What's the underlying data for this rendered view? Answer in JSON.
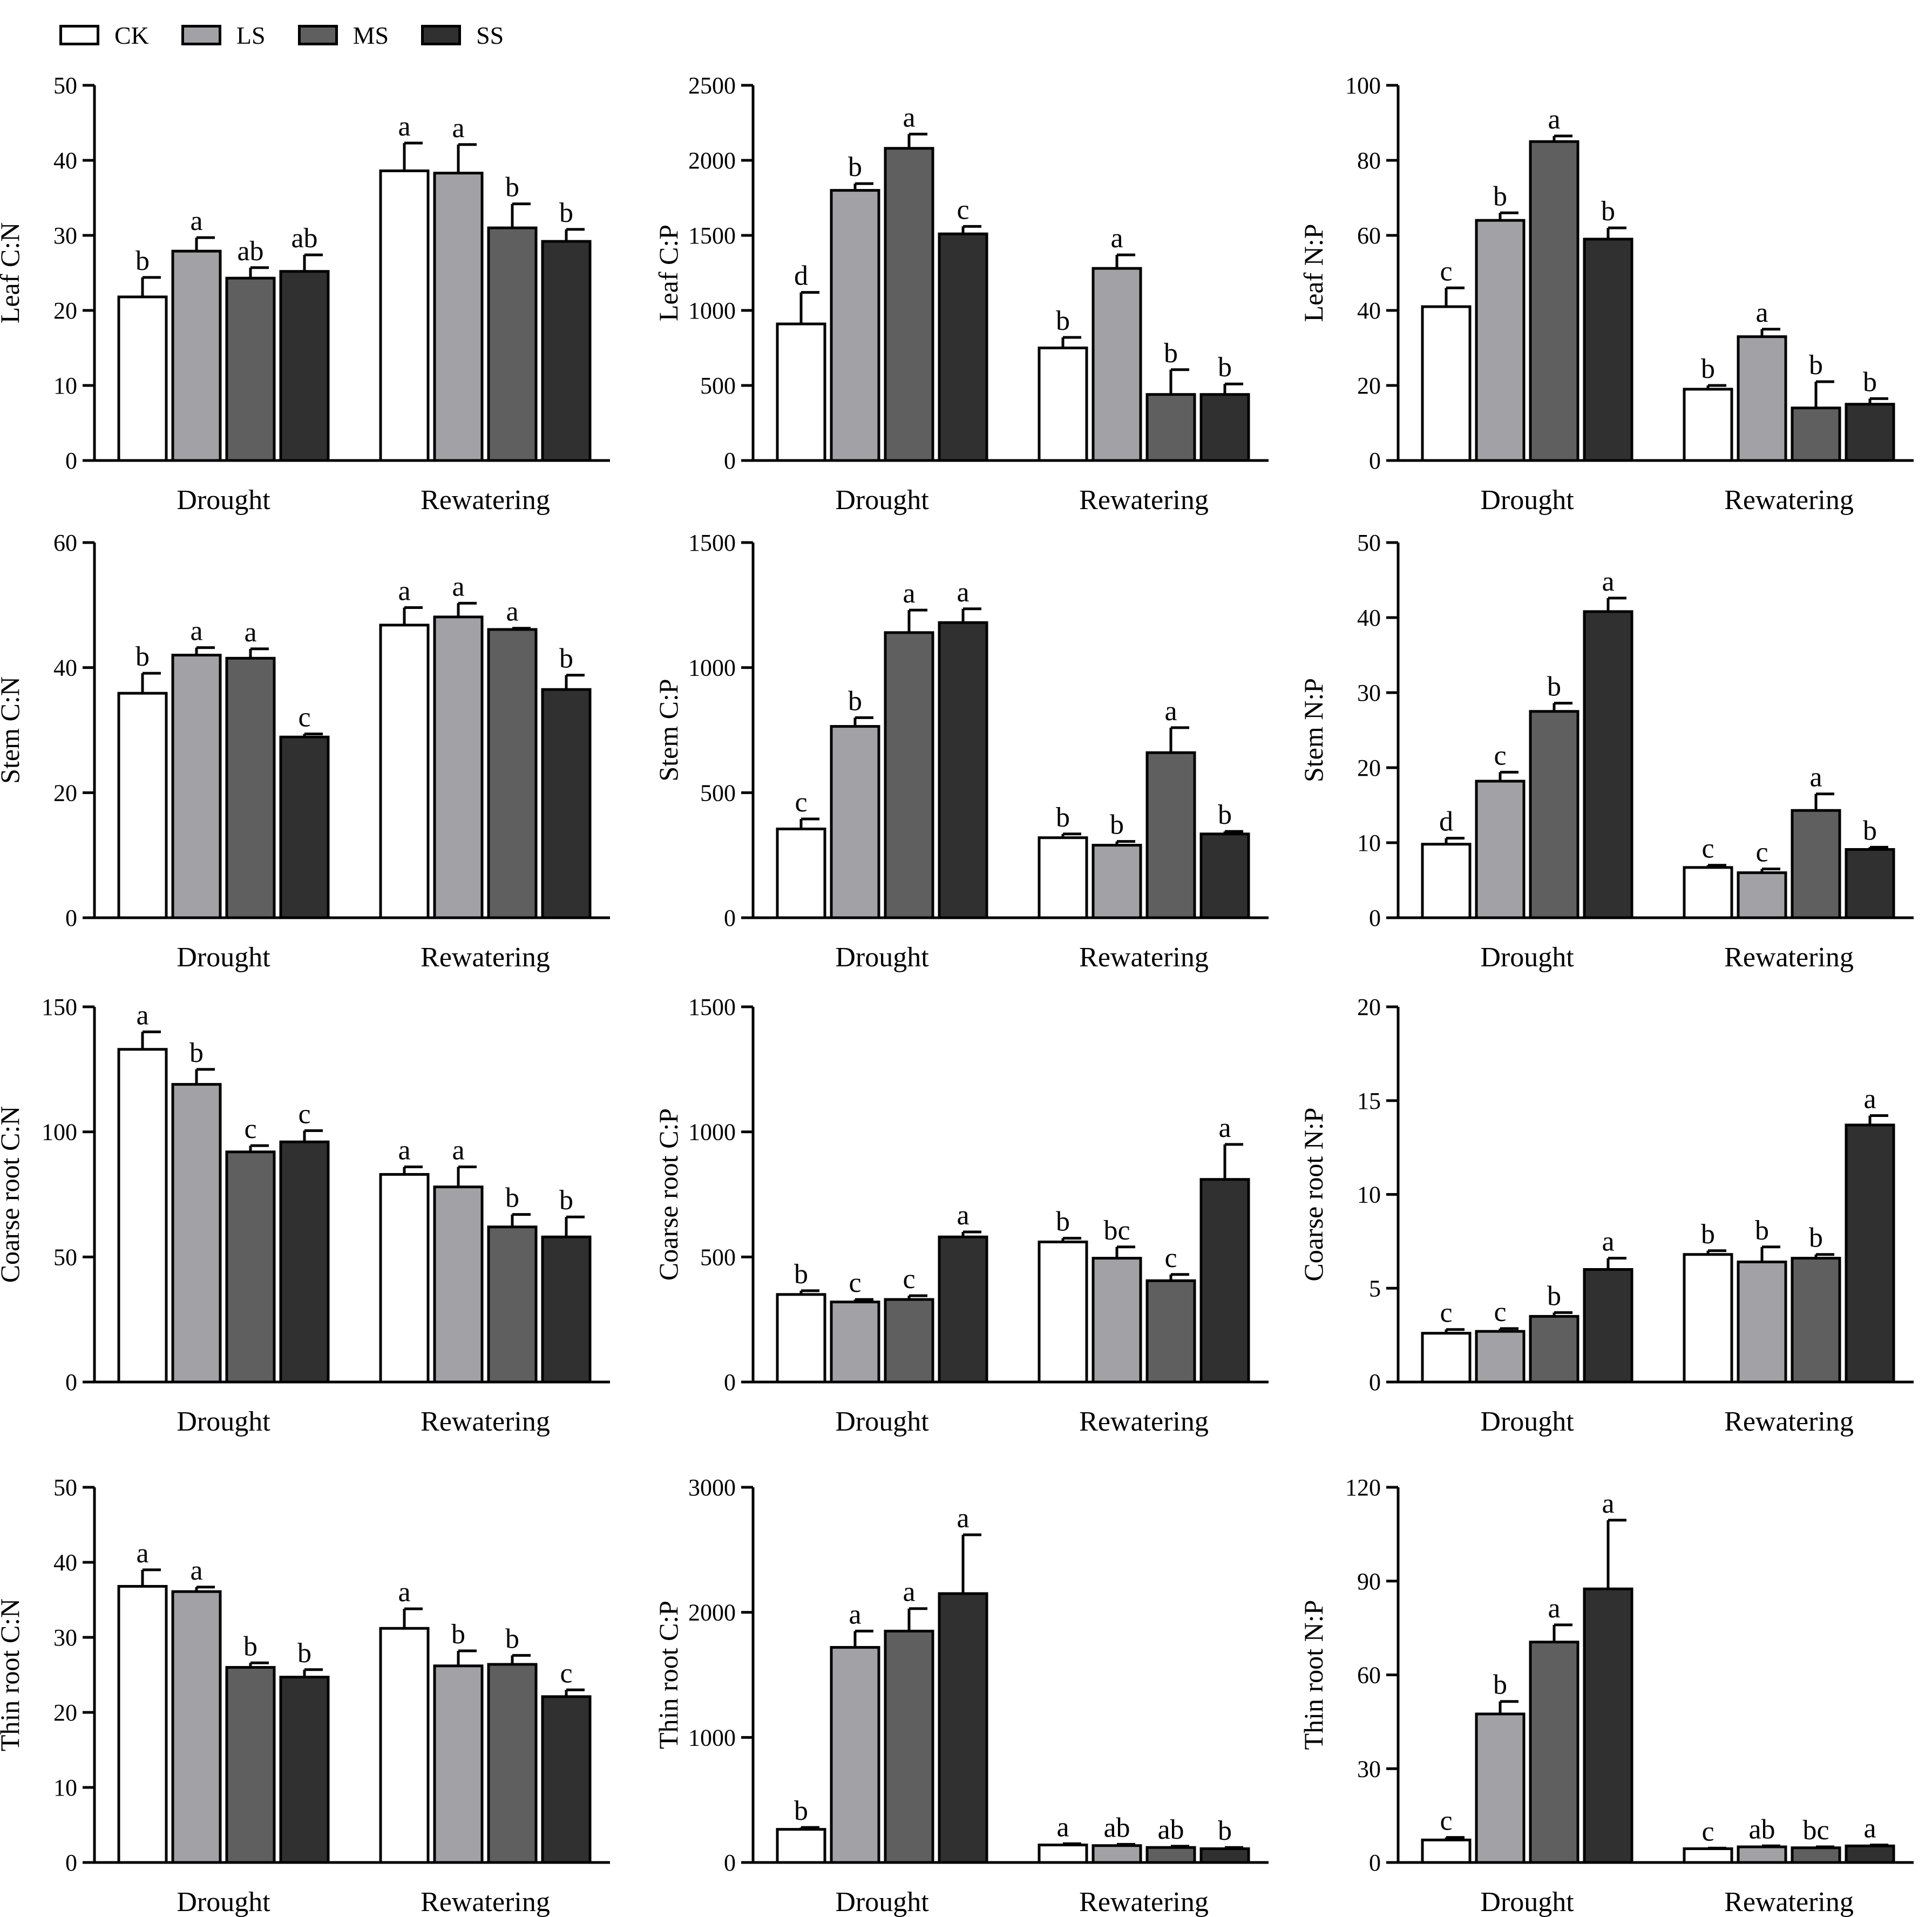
{
  "legend": [
    {
      "code": "CK",
      "color": "#ffffff"
    },
    {
      "code": "LS",
      "color": "#a2a2a6"
    },
    {
      "code": "MS",
      "color": "#5f5f5f"
    },
    {
      "code": "SS",
      "color": "#303030"
    }
  ],
  "chart_data": [
    {
      "type": "bar",
      "ylabel": "Leaf C:N",
      "categories": [
        "Drought",
        "Rewatering"
      ],
      "ylim": [
        0,
        50
      ],
      "yticks": [
        0,
        10,
        20,
        30,
        40,
        50
      ],
      "series": [
        {
          "name": "CK",
          "values": [
            21.8,
            38.6
          ],
          "errors": [
            2.6,
            3.7
          ],
          "letters": [
            "b",
            "a"
          ]
        },
        {
          "name": "LS",
          "values": [
            27.9,
            38.3
          ],
          "errors": [
            1.8,
            3.8
          ],
          "letters": [
            "a",
            "a"
          ]
        },
        {
          "name": "MS",
          "values": [
            24.3,
            31.0
          ],
          "errors": [
            1.4,
            3.2
          ],
          "letters": [
            "ab",
            "b"
          ]
        },
        {
          "name": "SS",
          "values": [
            25.2,
            29.2
          ],
          "errors": [
            2.2,
            1.6
          ],
          "letters": [
            "ab",
            "b"
          ]
        }
      ]
    },
    {
      "type": "bar",
      "ylabel": "Leaf C:P",
      "categories": [
        "Drought",
        "Rewatering"
      ],
      "ylim": [
        0,
        2500
      ],
      "yticks": [
        0,
        500,
        1000,
        1500,
        2000,
        2500
      ],
      "series": [
        {
          "name": "CK",
          "values": [
            910,
            750
          ],
          "errors": [
            210,
            70
          ],
          "letters": [
            "d",
            "b"
          ]
        },
        {
          "name": "LS",
          "values": [
            1800,
            1280
          ],
          "errors": [
            45,
            90
          ],
          "letters": [
            "b",
            "a"
          ]
        },
        {
          "name": "MS",
          "values": [
            2080,
            440
          ],
          "errors": [
            95,
            165
          ],
          "letters": [
            "a",
            "b"
          ]
        },
        {
          "name": "SS",
          "values": [
            1510,
            440
          ],
          "errors": [
            50,
            70
          ],
          "letters": [
            "c",
            "b"
          ]
        }
      ]
    },
    {
      "type": "bar",
      "ylabel": "Leaf N:P",
      "categories": [
        "Drought",
        "Rewatering"
      ],
      "ylim": [
        0,
        100
      ],
      "yticks": [
        0,
        20,
        40,
        60,
        80,
        100
      ],
      "series": [
        {
          "name": "CK",
          "values": [
            41,
            19
          ],
          "errors": [
            5,
            1
          ],
          "letters": [
            "c",
            "b"
          ]
        },
        {
          "name": "LS",
          "values": [
            64,
            33
          ],
          "errors": [
            2,
            2
          ],
          "letters": [
            "b",
            "a"
          ]
        },
        {
          "name": "MS",
          "values": [
            85,
            14
          ],
          "errors": [
            1.5,
            7
          ],
          "letters": [
            "a",
            "b"
          ]
        },
        {
          "name": "SS",
          "values": [
            59,
            15
          ],
          "errors": [
            3,
            1.5
          ],
          "letters": [
            "b",
            "b"
          ]
        }
      ]
    },
    {
      "type": "bar",
      "ylabel": "Stem C:N",
      "categories": [
        "Drought",
        "Rewatering"
      ],
      "ylim": [
        0,
        60
      ],
      "yticks": [
        0,
        20,
        40,
        60
      ],
      "series": [
        {
          "name": "CK",
          "values": [
            35.9,
            46.8
          ],
          "errors": [
            3.2,
            2.8
          ],
          "letters": [
            "b",
            "a"
          ]
        },
        {
          "name": "LS",
          "values": [
            42.0,
            48.1
          ],
          "errors": [
            1.2,
            2.2
          ],
          "letters": [
            "a",
            "a"
          ]
        },
        {
          "name": "MS",
          "values": [
            41.5,
            46.1
          ],
          "errors": [
            1.5,
            0.2
          ],
          "letters": [
            "a",
            "a"
          ]
        },
        {
          "name": "SS",
          "values": [
            28.9,
            36.5
          ],
          "errors": [
            0.5,
            2.3
          ],
          "letters": [
            "c",
            "b"
          ]
        }
      ]
    },
    {
      "type": "bar",
      "ylabel": "Stem C:P",
      "categories": [
        "Drought",
        "Rewatering"
      ],
      "ylim": [
        0,
        1500
      ],
      "yticks": [
        0,
        500,
        1000,
        1500
      ],
      "series": [
        {
          "name": "CK",
          "values": [
            355,
            320
          ],
          "errors": [
            40,
            15
          ],
          "letters": [
            "c",
            "b"
          ]
        },
        {
          "name": "LS",
          "values": [
            765,
            290
          ],
          "errors": [
            35,
            15
          ],
          "letters": [
            "b",
            "b"
          ]
        },
        {
          "name": "MS",
          "values": [
            1140,
            660
          ],
          "errors": [
            90,
            100
          ],
          "letters": [
            "a",
            "a"
          ]
        },
        {
          "name": "SS",
          "values": [
            1180,
            335
          ],
          "errors": [
            55,
            10
          ],
          "letters": [
            "a",
            "b"
          ]
        }
      ]
    },
    {
      "type": "bar",
      "ylabel": "Stem N:P",
      "categories": [
        "Drought",
        "Rewatering"
      ],
      "ylim": [
        0,
        50
      ],
      "yticks": [
        0,
        10,
        20,
        30,
        40,
        50
      ],
      "series": [
        {
          "name": "CK",
          "values": [
            9.8,
            6.7
          ],
          "errors": [
            0.8,
            0.3
          ],
          "letters": [
            "d",
            "c"
          ]
        },
        {
          "name": "LS",
          "values": [
            18.2,
            6.0
          ],
          "errors": [
            1.2,
            0.5
          ],
          "letters": [
            "c",
            "c"
          ]
        },
        {
          "name": "MS",
          "values": [
            27.5,
            14.3
          ],
          "errors": [
            1.1,
            2.2
          ],
          "letters": [
            "b",
            "a"
          ]
        },
        {
          "name": "SS",
          "values": [
            40.8,
            9.1
          ],
          "errors": [
            1.8,
            0.3
          ],
          "letters": [
            "a",
            "b"
          ]
        }
      ]
    },
    {
      "type": "bar",
      "ylabel": "Coarse root C:N",
      "categories": [
        "Drought",
        "Rewatering"
      ],
      "ylim": [
        0,
        150
      ],
      "yticks": [
        0,
        50,
        100,
        150
      ],
      "series": [
        {
          "name": "CK",
          "values": [
            133,
            83
          ],
          "errors": [
            7,
            3
          ],
          "letters": [
            "a",
            "a"
          ]
        },
        {
          "name": "LS",
          "values": [
            119,
            78
          ],
          "errors": [
            6,
            8
          ],
          "letters": [
            "b",
            "a"
          ]
        },
        {
          "name": "MS",
          "values": [
            92,
            62
          ],
          "errors": [
            2.5,
            5
          ],
          "letters": [
            "c",
            "b"
          ]
        },
        {
          "name": "SS",
          "values": [
            96,
            58
          ],
          "errors": [
            4.5,
            8
          ],
          "letters": [
            "c",
            "b"
          ]
        }
      ]
    },
    {
      "type": "bar",
      "ylabel": "Coarse root C:P",
      "categories": [
        "Drought",
        "Rewatering"
      ],
      "ylim": [
        0,
        1500
      ],
      "yticks": [
        0,
        500,
        1000,
        1500
      ],
      "series": [
        {
          "name": "CK",
          "values": [
            350,
            560
          ],
          "errors": [
            15,
            15
          ],
          "letters": [
            "b",
            "b"
          ]
        },
        {
          "name": "LS",
          "values": [
            320,
            495
          ],
          "errors": [
            10,
            45
          ],
          "letters": [
            "c",
            "bc"
          ]
        },
        {
          "name": "MS",
          "values": [
            330,
            405
          ],
          "errors": [
            15,
            25
          ],
          "letters": [
            "c",
            "c"
          ]
        },
        {
          "name": "SS",
          "values": [
            580,
            810
          ],
          "errors": [
            20,
            140
          ],
          "letters": [
            "a",
            "a"
          ]
        }
      ]
    },
    {
      "type": "bar",
      "ylabel": "Coarse root N:P",
      "categories": [
        "Drought",
        "Rewatering"
      ],
      "ylim": [
        0,
        20
      ],
      "yticks": [
        0,
        5,
        10,
        15,
        20
      ],
      "series": [
        {
          "name": "CK",
          "values": [
            2.6,
            6.8
          ],
          "errors": [
            0.2,
            0.2
          ],
          "letters": [
            "c",
            "b"
          ]
        },
        {
          "name": "LS",
          "values": [
            2.7,
            6.4
          ],
          "errors": [
            0.15,
            0.8
          ],
          "letters": [
            "c",
            "b"
          ]
        },
        {
          "name": "MS",
          "values": [
            3.5,
            6.6
          ],
          "errors": [
            0.2,
            0.2
          ],
          "letters": [
            "b",
            "b"
          ]
        },
        {
          "name": "SS",
          "values": [
            6.0,
            13.7
          ],
          "errors": [
            0.6,
            0.5
          ],
          "letters": [
            "a",
            "a"
          ]
        }
      ]
    },
    {
      "type": "bar",
      "ylabel": "Thin root C:N",
      "categories": [
        "Drought",
        "Rewatering"
      ],
      "ylim": [
        0,
        50
      ],
      "yticks": [
        0,
        10,
        20,
        30,
        40,
        50
      ],
      "series": [
        {
          "name": "CK",
          "values": [
            36.8,
            31.2
          ],
          "errors": [
            2.2,
            2.6
          ],
          "letters": [
            "a",
            "a"
          ]
        },
        {
          "name": "LS",
          "values": [
            36.1,
            26.2
          ],
          "errors": [
            0.6,
            2.0
          ],
          "letters": [
            "a",
            "b"
          ]
        },
        {
          "name": "MS",
          "values": [
            26.0,
            26.4
          ],
          "errors": [
            0.6,
            1.2
          ],
          "letters": [
            "b",
            "b"
          ]
        },
        {
          "name": "SS",
          "values": [
            24.7,
            22.1
          ],
          "errors": [
            1.0,
            0.9
          ],
          "letters": [
            "b",
            "c"
          ]
        }
      ]
    },
    {
      "type": "bar",
      "ylabel": "Thin root C:P",
      "categories": [
        "Drought",
        "Rewatering"
      ],
      "ylim": [
        0,
        3000
      ],
      "yticks": [
        0,
        1000,
        2000,
        3000
      ],
      "series": [
        {
          "name": "CK",
          "values": [
            265,
            140
          ],
          "errors": [
            15,
            10
          ],
          "letters": [
            "b",
            "a"
          ]
        },
        {
          "name": "LS",
          "values": [
            1720,
            135
          ],
          "errors": [
            130,
            10
          ],
          "letters": [
            "a",
            "ab"
          ]
        },
        {
          "name": "MS",
          "values": [
            1850,
            120
          ],
          "errors": [
            180,
            10
          ],
          "letters": [
            "a",
            "ab"
          ]
        },
        {
          "name": "SS",
          "values": [
            2150,
            110
          ],
          "errors": [
            470,
            10
          ],
          "letters": [
            "a",
            "b"
          ]
        }
      ]
    },
    {
      "type": "bar",
      "ylabel": "Thin root N:P",
      "categories": [
        "Drought",
        "Rewatering"
      ],
      "ylim": [
        0,
        120
      ],
      "yticks": [
        0,
        30,
        60,
        90,
        120
      ],
      "series": [
        {
          "name": "CK",
          "values": [
            7.2,
            4.4
          ],
          "errors": [
            0.8,
            0.2
          ],
          "letters": [
            "c",
            "c"
          ]
        },
        {
          "name": "LS",
          "values": [
            47.5,
            5.0
          ],
          "errors": [
            4,
            0.3
          ],
          "letters": [
            "b",
            "ab"
          ]
        },
        {
          "name": "MS",
          "values": [
            70.5,
            4.7
          ],
          "errors": [
            5.5,
            0.3
          ],
          "letters": [
            "a",
            "bc"
          ]
        },
        {
          "name": "SS",
          "values": [
            87.5,
            5.3
          ],
          "errors": [
            22,
            0.3
          ],
          "letters": [
            "a",
            "a"
          ]
        }
      ]
    }
  ]
}
